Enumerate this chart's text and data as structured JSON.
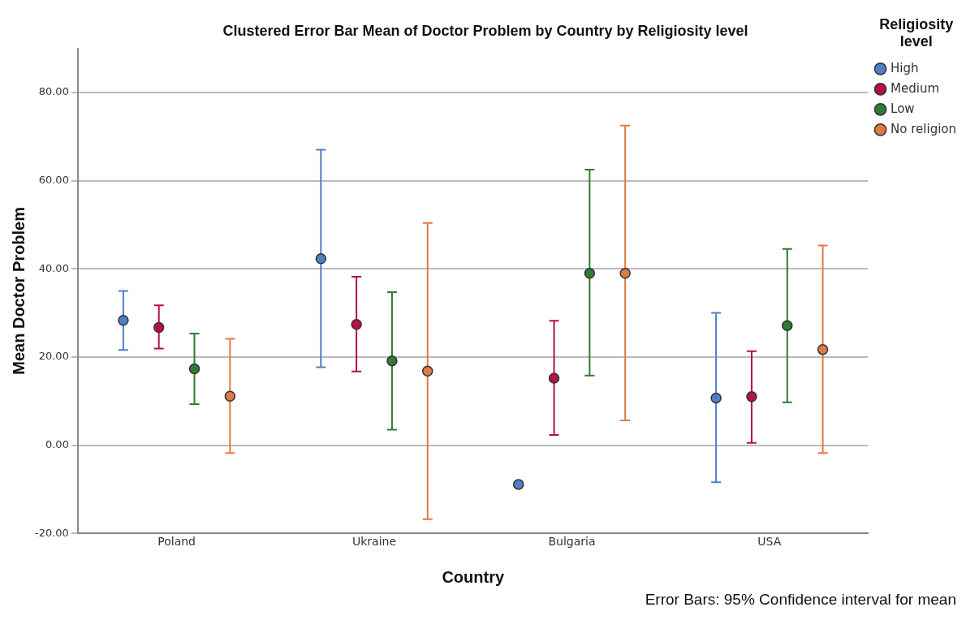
{
  "chart_data": {
    "type": "scatter",
    "title": "Clustered Error Bar Mean of Doctor Problem by Country by Religiosity level",
    "xlabel": "Country",
    "ylabel": "Mean Doctor Problem",
    "legend_title": "Religiosity level",
    "categories": [
      "Poland",
      "Ukraine",
      "Bulgaria",
      "USA"
    ],
    "series": [
      {
        "name": "High",
        "color": "#4f7fc4",
        "values": [
          28.3,
          42.3,
          -8.9,
          10.7
        ],
        "errors": [
          [
            21.6,
            35.0
          ],
          [
            17.7,
            67.0
          ],
          null,
          [
            -8.4,
            30.0
          ]
        ]
      },
      {
        "name": "Medium",
        "color": "#b5123f",
        "values": [
          26.7,
          27.4,
          15.2,
          11.0
        ],
        "errors": [
          [
            21.9,
            31.7
          ],
          [
            16.7,
            38.2
          ],
          [
            2.3,
            28.2
          ],
          [
            0.5,
            21.3
          ]
        ]
      },
      {
        "name": "Low",
        "color": "#2f7a34",
        "values": [
          17.3,
          19.1,
          39.0,
          27.1
        ],
        "errors": [
          [
            9.3,
            25.3
          ],
          [
            3.5,
            34.7
          ],
          [
            15.8,
            62.5
          ],
          [
            9.7,
            44.5
          ]
        ]
      },
      {
        "name": "No religion",
        "color": "#e07a45",
        "values": [
          11.1,
          16.8,
          39.0,
          21.7
        ],
        "errors": [
          [
            -1.8,
            24.1
          ],
          [
            -16.8,
            50.4
          ],
          [
            5.6,
            72.5
          ],
          [
            -1.8,
            45.3
          ]
        ]
      }
    ],
    "ylim": [
      -20,
      90
    ],
    "yticks": [
      {
        "value": -20,
        "label": "-20.00"
      },
      {
        "value": 0,
        "label": "0.00"
      },
      {
        "value": 20,
        "label": "20.00"
      },
      {
        "value": 40,
        "label": "40.00"
      },
      {
        "value": 60,
        "label": "60.00"
      },
      {
        "value": 80,
        "label": "80.00"
      }
    ],
    "grid": "y",
    "legend": "top right",
    "marker": "circle",
    "annotations": [
      "Error Bars: 95% Confidence interval for mean"
    ]
  }
}
